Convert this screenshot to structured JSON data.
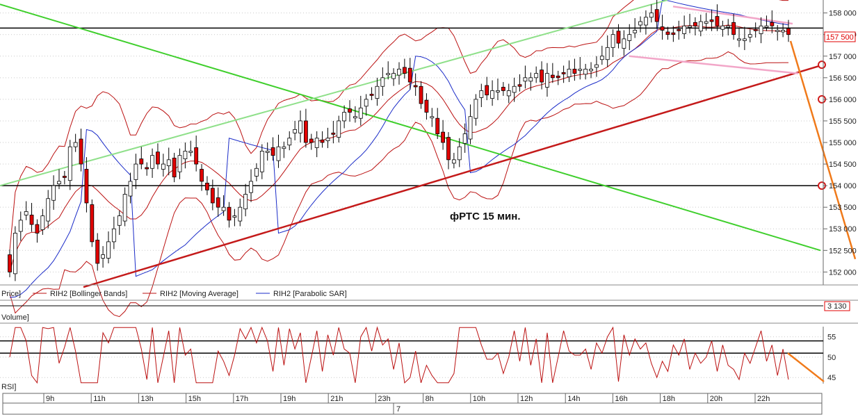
{
  "chart_data": {
    "type": "candlestick",
    "title": "фРТС   15 мин.",
    "price_axis": {
      "ylim": [
        151700,
        158300
      ],
      "ticks": [
        "158 000",
        "157 500",
        "157 000",
        "156 500",
        "156 000",
        "155 500",
        "155 000",
        "154 500",
        "154 000",
        "153 500",
        "153 000",
        "152 500",
        "152 000"
      ],
      "last_price_label": "157 500"
    },
    "legend": [
      "Price]",
      "RIH2 [Bollinger Bands]",
      "RIH2 [Moving Average]",
      "RIH2 [Parabolic SAR]"
    ],
    "volume_panel": {
      "label": "Volume]",
      "value_label": "3 130"
    },
    "rsi_panel": {
      "label": "RSI]",
      "ticks": [
        "55",
        "50",
        "45"
      ],
      "levels": [
        54,
        51
      ]
    },
    "time_axis": {
      "ticks": [
        "9h",
        "11h",
        "13h",
        "15h",
        "17h",
        "19h",
        "21h",
        "23h",
        "8h",
        "10h",
        "12h",
        "14h",
        "16h",
        "18h",
        "20h",
        "22h"
      ],
      "day_label": "7"
    },
    "candles_close": [
      152000,
      152900,
      153200,
      153400,
      153100,
      152900,
      153300,
      153700,
      154000,
      154100,
      154200,
      154900,
      155000,
      154500,
      153600,
      152700,
      152200,
      152400,
      152700,
      153000,
      153300,
      153800,
      154100,
      154500,
      154500,
      154400,
      154700,
      154500,
      154500,
      154600,
      154200,
      154700,
      154800,
      154800,
      154500,
      154100,
      153900,
      153600,
      153500,
      153500,
      153200,
      153300,
      153500,
      153800,
      154100,
      154400,
      154800,
      154800,
      154700,
      154900,
      154900,
      155100,
      155300,
      155500,
      155000,
      155000,
      155100,
      155000,
      155100,
      155200,
      155500,
      155700,
      155700,
      155600,
      155800,
      156000,
      156100,
      156300,
      156500,
      156600,
      156600,
      156700,
      156600,
      156400,
      156300,
      155900,
      155700,
      155600,
      155200,
      155000,
      154600,
      154600,
      154900,
      155200,
      155600,
      156000,
      156200,
      156100,
      156200,
      156200,
      156200,
      156200,
      156300,
      156300,
      156500,
      156500,
      156600,
      156400,
      156600,
      156500,
      156500,
      156600,
      156700,
      156600,
      156700,
      156700,
      156700,
      156800,
      157000,
      157200,
      157500,
      157300,
      157400,
      157500,
      157600,
      157800,
      157900,
      158000,
      157800,
      157600,
      157500,
      157500,
      157600,
      157700,
      157700,
      157700,
      157800,
      157800,
      157800,
      157700,
      157700,
      157700,
      157500,
      157400,
      157400,
      157500,
      157600,
      157700,
      157700,
      157700,
      157600,
      157600,
      157500
    ],
    "green_line_1": {
      "start": [
        0,
        158200
      ],
      "end": [
        1180,
        152500
      ]
    },
    "green_line_2": {
      "start": [
        0,
        154000
      ],
      "end": [
        960,
        158300
      ]
    },
    "red_trend_line": {
      "start": [
        120,
        151650
      ],
      "end": [
        1184,
        156800
      ]
    },
    "horizontal_levels": [
      157650,
      154000
    ],
    "pink_channel": [
      {
        "start": [
          968,
          158150
        ],
        "end": [
          1140,
          157750
        ]
      },
      {
        "start": [
          905,
          157000
        ],
        "end": [
          1148,
          156600
        ]
      }
    ],
    "orange_projection": {
      "price": [
        [
          1137,
          157350
        ],
        [
          1230,
          152300
        ]
      ],
      "rsi": [
        [
          1133,
          51
        ],
        [
          1185,
          44
        ]
      ]
    },
    "circle_markers": [
      156800,
      156000,
      154000
    ]
  },
  "colors": {
    "candle_up": "#ffffff",
    "candle_down": "#e00000",
    "candle_edge": "#000000",
    "bollinger": "#b11",
    "moving_average": "#b11",
    "parabolic_sar": "#1a2bc8",
    "green_line": "#3fcf2c",
    "light_green_line": "#8fe08a",
    "red_trend": "#c41a1a",
    "pink_channel": "#f2a6c8",
    "orange_projection": "#f07a1a",
    "grid": "#c9c9c9"
  }
}
